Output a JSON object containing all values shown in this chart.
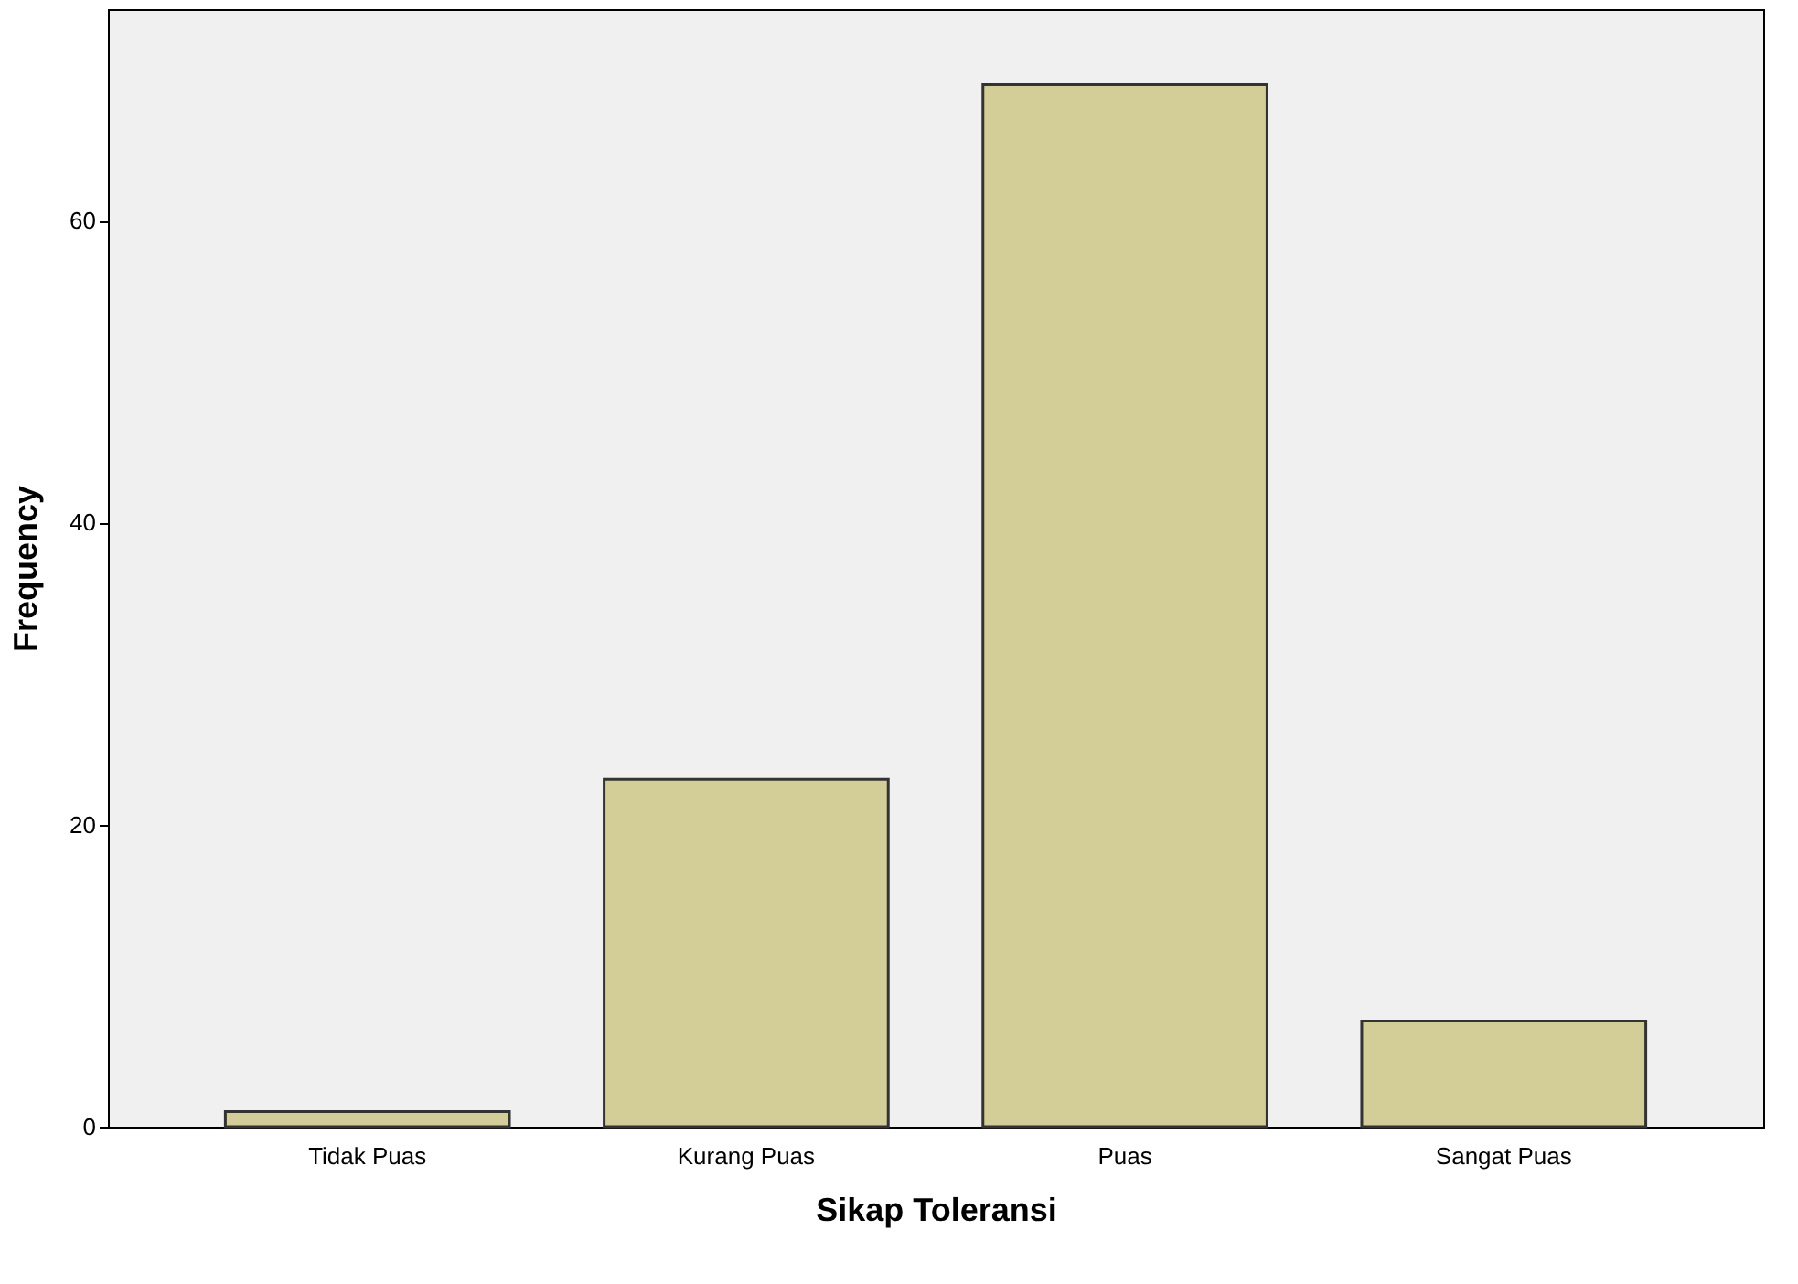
{
  "chart_data": {
    "type": "bar",
    "xlabel": "Sikap Toleransi",
    "ylabel": "Frequency",
    "categories": [
      "Tidak Puas",
      "Kurang Puas",
      "Puas",
      "Sangat Puas"
    ],
    "values": [
      1,
      23,
      69,
      7
    ],
    "color": "#d3ce97",
    "ylim": [
      0,
      74
    ],
    "yticks": [
      0,
      20,
      40,
      60
    ],
    "grid": false
  }
}
